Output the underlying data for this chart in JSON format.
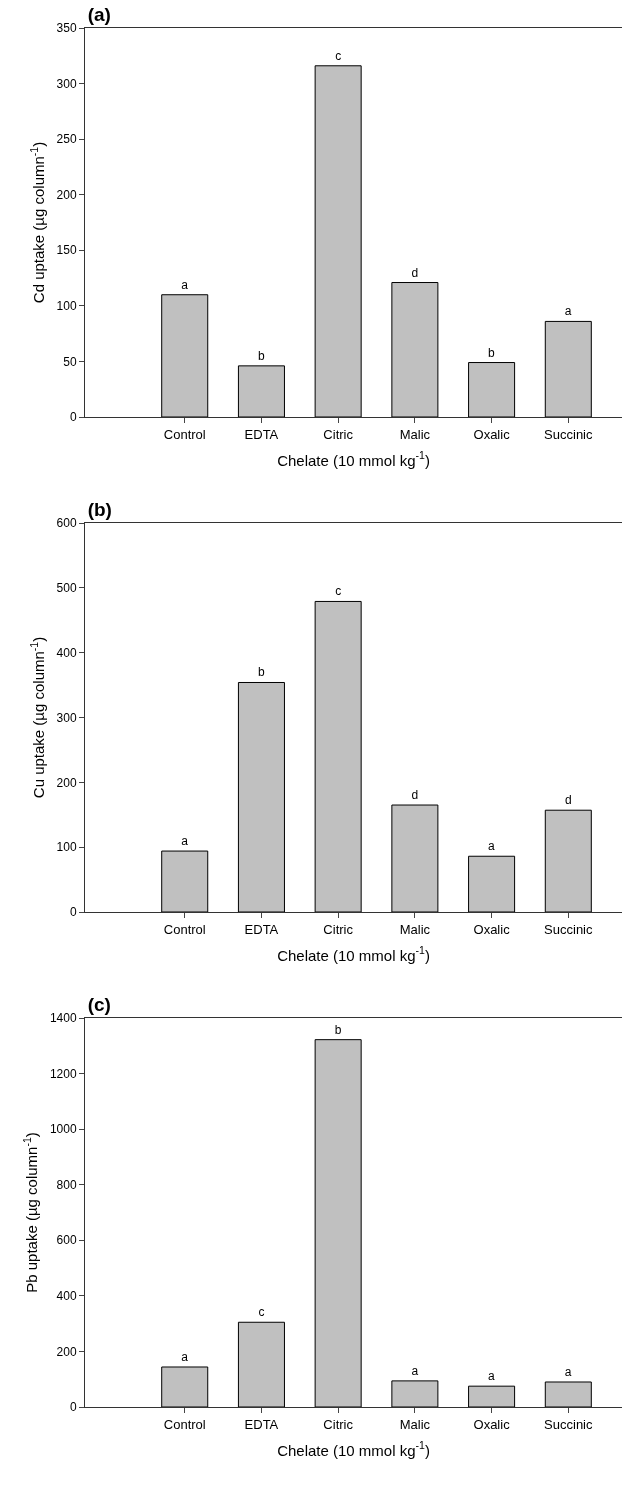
{
  "chart_data": [
    {
      "type": "bar",
      "title": "(a)",
      "xlabel": "Chelate (10 mmol kg$^{-1}$)",
      "ylabel": "Cd uptake (µg column$^{-1}$)",
      "categories": [
        "Control",
        "EDTA",
        "Citric",
        "Malic",
        "Oxalic",
        "Succinic"
      ],
      "values": [
        110,
        46,
        316,
        121,
        49,
        86
      ],
      "value_labels": [
        "a",
        "b",
        "c",
        "d",
        "b",
        "a"
      ],
      "color": "#c0c0c0",
      "ylim": [
        0,
        350
      ],
      "yticks": [
        0,
        50,
        100,
        150,
        200,
        250,
        300,
        350
      ],
      "grid": false
    },
    {
      "type": "bar",
      "title": "(b)",
      "xlabel": "Chelate (10 mmol kg$^{-1}$)",
      "ylabel": "Cu uptake (µg column$^{-1}$)",
      "categories": [
        "Control",
        "EDTA",
        "Citric",
        "Malic",
        "Oxalic",
        "Succinic"
      ],
      "values": [
        94,
        354,
        479,
        165,
        86,
        157
      ],
      "value_labels": [
        "a",
        "b",
        "c",
        "d",
        "a",
        "d"
      ],
      "color": "#c0c0c0",
      "ylim": [
        0,
        600
      ],
      "yticks": [
        0,
        100,
        200,
        300,
        400,
        500,
        600
      ],
      "grid": false
    },
    {
      "type": "bar",
      "title": "(c)",
      "xlabel": "Chelate (10 mmol kg$^{-1}$)",
      "ylabel": "Pb uptake (µg column$^{-1}$)",
      "categories": [
        "Control",
        "EDTA",
        "Citric",
        "Malic",
        "Oxalic",
        "Succinic"
      ],
      "values": [
        144,
        305,
        1322,
        94,
        75,
        90
      ],
      "value_labels": [
        "a",
        "c",
        "b",
        "a",
        "a",
        "a"
      ],
      "color": "#c0c0c0",
      "ylim": [
        0,
        1400
      ],
      "yticks": [
        0,
        200,
        400,
        600,
        800,
        1000,
        1200,
        1400
      ],
      "grid": false
    }
  ]
}
